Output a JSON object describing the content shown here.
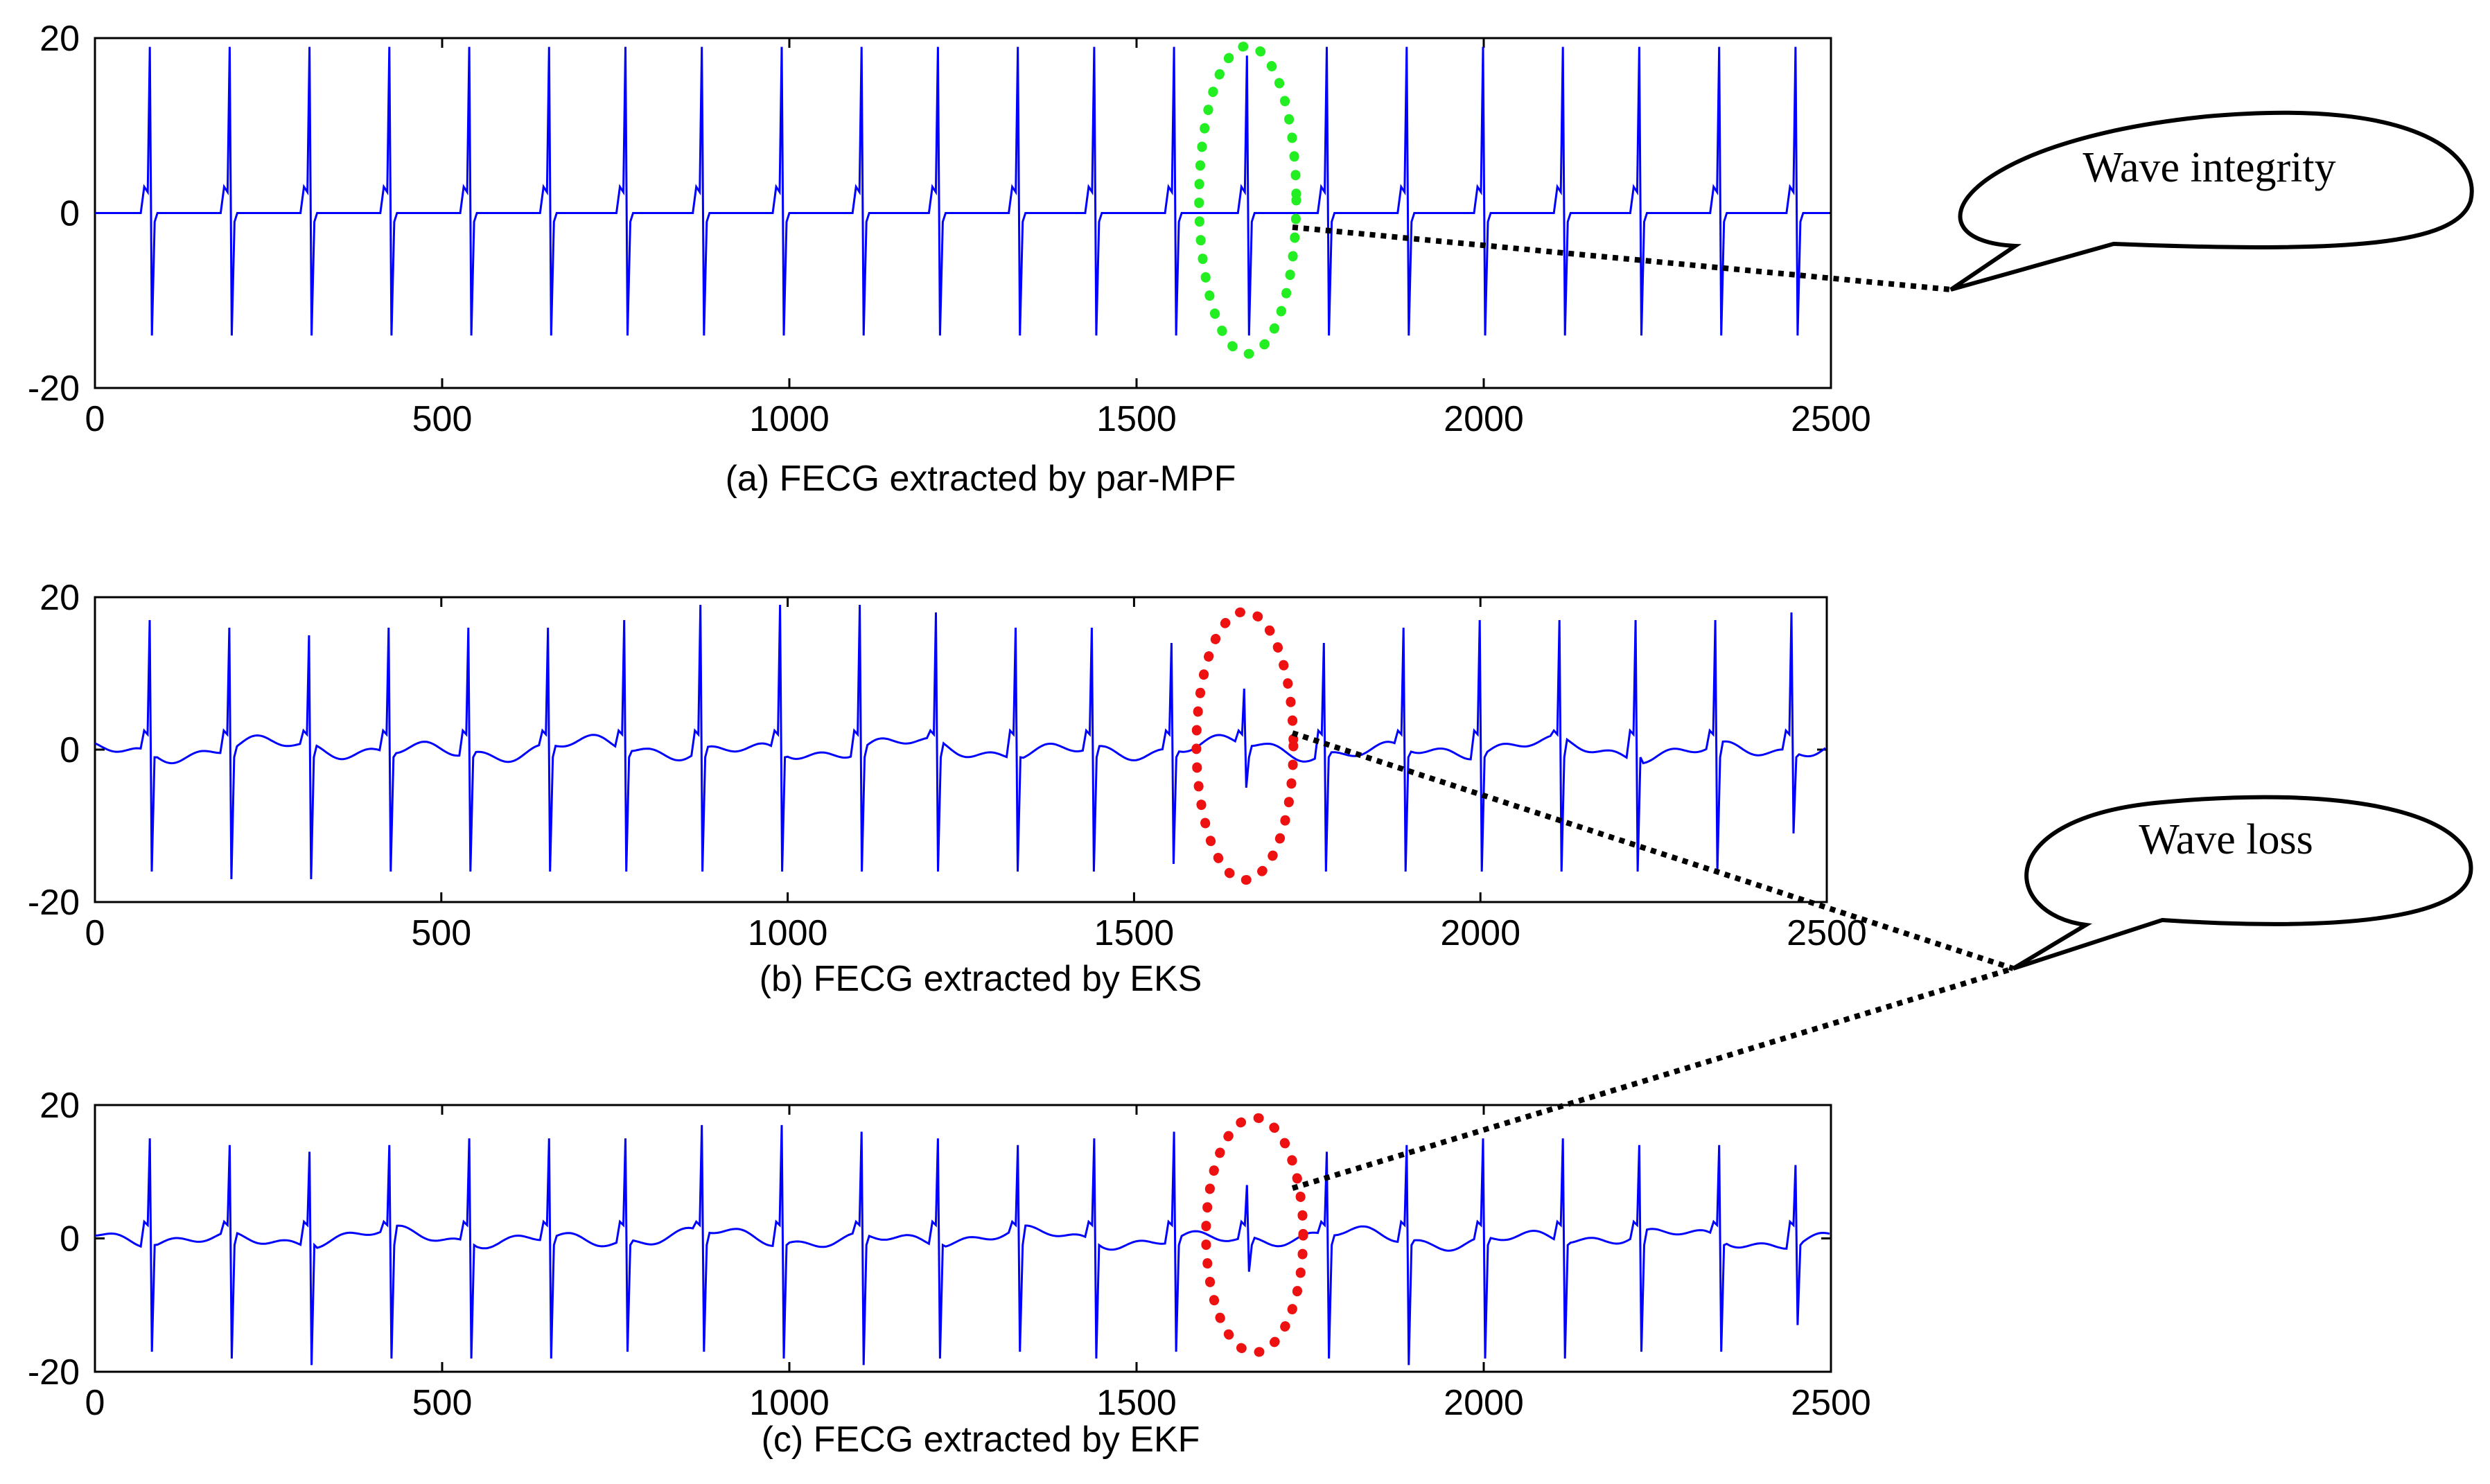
{
  "chart_data": [
    {
      "type": "line",
      "caption": "(a) FECG extracted by par-MPF",
      "xlim": [
        0,
        2500
      ],
      "ylim": [
        -20,
        20
      ],
      "xticks": [
        "0",
        "500",
        "1000",
        "1500",
        "2000",
        "2500"
      ],
      "yticks": [
        "20",
        "0",
        "-20"
      ],
      "line_color": "#0000ff",
      "highlight": {
        "center_x": 1660,
        "center_y": 1.5,
        "color": "#22ee22",
        "style": "dotted-ellipse"
      },
      "peak_x": [
        80,
        195,
        310,
        425,
        540,
        655,
        765,
        875,
        990,
        1105,
        1215,
        1330,
        1440,
        1555,
        1660,
        1775,
        1890,
        2000,
        2115,
        2225,
        2340,
        2450
      ],
      "peak_max": [
        19,
        19,
        19,
        19,
        19,
        19,
        19,
        19,
        19,
        19,
        19,
        19,
        19,
        19,
        18,
        19,
        19,
        19,
        19,
        19,
        19,
        19
      ],
      "peak_min": [
        -14,
        -14,
        -14,
        -14,
        -14,
        -14,
        -14,
        -14,
        -14,
        -14,
        -14,
        -14,
        -14,
        -14,
        -14,
        -14,
        -14,
        -14,
        -14,
        -14,
        -14,
        -14
      ]
    },
    {
      "type": "line",
      "caption": "(b) FECG extracted by EKS",
      "xlim": [
        0,
        2500
      ],
      "ylim": [
        -20,
        20
      ],
      "xticks": [
        "0",
        "500",
        "1000",
        "1500",
        "2000",
        "2500"
      ],
      "yticks": [
        "20",
        "0",
        "-20"
      ],
      "line_color": "#0000ff",
      "highlight": {
        "center_x": 1660,
        "center_y": 0.5,
        "color": "#ee1111",
        "style": "dotted-ellipse"
      },
      "peak_x": [
        80,
        195,
        310,
        425,
        540,
        655,
        765,
        875,
        990,
        1105,
        1215,
        1330,
        1440,
        1555,
        1660,
        1775,
        1890,
        2000,
        2115,
        2225,
        2340,
        2450
      ],
      "peak_max": [
        17,
        16,
        15,
        16,
        16,
        16,
        17,
        19,
        19,
        19,
        18,
        16,
        16,
        14,
        8,
        14,
        16,
        17,
        17,
        17,
        17,
        18
      ],
      "peak_min": [
        -16,
        -17,
        -17,
        -16,
        -16,
        -16,
        -16,
        -16,
        -16,
        -16,
        -16,
        -16,
        -16,
        -15,
        -5,
        -16,
        -16,
        -16,
        -16,
        -16,
        -16,
        -11
      ]
    },
    {
      "type": "line",
      "caption": "(c) FECG extracted by EKF",
      "xlim": [
        0,
        2500
      ],
      "ylim": [
        -20,
        20
      ],
      "xticks": [
        "0",
        "500",
        "1000",
        "1500",
        "2000",
        "2500"
      ],
      "yticks": [
        "20",
        "0",
        "-20"
      ],
      "line_color": "#0000ff",
      "highlight": {
        "center_x": 1670,
        "center_y": 0.5,
        "color": "#ee1111",
        "style": "dotted-ellipse"
      },
      "peak_x": [
        80,
        195,
        310,
        425,
        540,
        655,
        765,
        875,
        990,
        1105,
        1215,
        1330,
        1440,
        1555,
        1660,
        1775,
        1890,
        2000,
        2115,
        2225,
        2340,
        2450
      ],
      "peak_max": [
        15,
        14,
        13,
        14,
        15,
        15,
        15,
        17,
        17,
        16,
        15,
        14,
        15,
        16,
        8,
        13,
        14,
        15,
        15,
        14,
        14,
        11
      ],
      "peak_min": [
        -17,
        -18,
        -19,
        -18,
        -18,
        -18,
        -17,
        -17,
        -18,
        -19,
        -18,
        -17,
        -18,
        -17,
        -5,
        -18,
        -19,
        -18,
        -18,
        -17,
        -17,
        -13
      ]
    }
  ],
  "annotations": {
    "bubble_top": "Wave integrity",
    "bubble_bottom": "Wave loss"
  }
}
